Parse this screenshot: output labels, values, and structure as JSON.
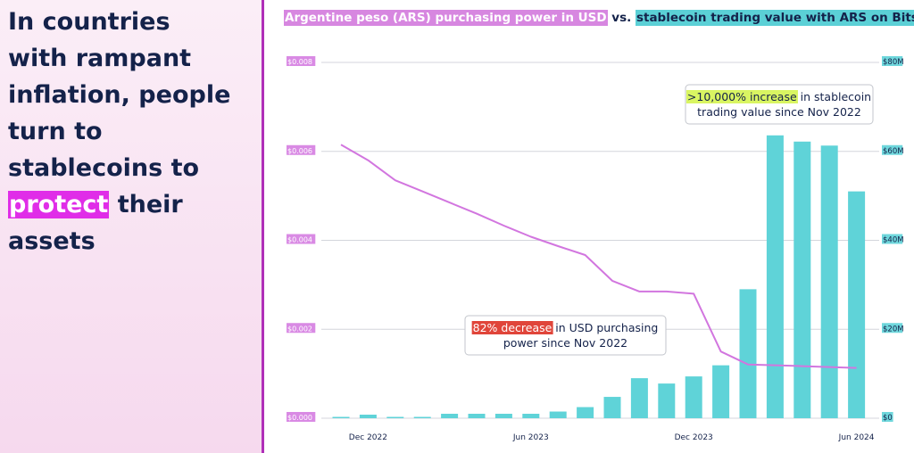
{
  "headline": {
    "line1": "In countries",
    "line2": "with rampant",
    "line3": "inflation, people",
    "line4": "turn to",
    "line5": "stablecoins to",
    "highlight": "protect",
    "line6_rest": " their",
    "line7": "assets"
  },
  "chart_title": {
    "part_ars": "Argentine peso (ARS) purchasing power in USD",
    "connector": " vs. ",
    "part_stable": "stablecoin trading value with ARS on Bitso"
  },
  "colors": {
    "ars_line": "#d276df",
    "bars": "#5fd3d8",
    "headline": "#14224a",
    "highlight": "#e02de8",
    "decrease_highlight": "#e0453a",
    "increase_highlight": "#d9f562"
  },
  "chart_data": {
    "type": "bar",
    "x": [
      "2022-11",
      "2022-12",
      "2023-01",
      "2023-02",
      "2023-03",
      "2023-04",
      "2023-05",
      "2023-06",
      "2023-07",
      "2023-08",
      "2023-09",
      "2023-10",
      "2023-11",
      "2023-12",
      "2024-01",
      "2024-02",
      "2024-03",
      "2024-04",
      "2024-05",
      "2024-06"
    ],
    "series": [
      {
        "kind": "bar",
        "axis": "right",
        "values": [
          0.3,
          0.8,
          0.3,
          0.3,
          1.0,
          1.0,
          1.0,
          1.0,
          1.5,
          2.5,
          4.8,
          9.0,
          7.8,
          9.4,
          11.9,
          29.0,
          63.6,
          62.2,
          61.3,
          51.0
        ]
      },
      {
        "kind": "line",
        "axis": "left",
        "values": [
          0.00615,
          0.0058,
          0.00535,
          0.0051,
          0.00485,
          0.0046,
          0.00433,
          0.00408,
          0.00387,
          0.00367,
          0.00309,
          0.00285,
          0.00285,
          0.0028,
          0.0015,
          0.00121,
          0.00119,
          0.00117,
          0.00115,
          0.00113
        ]
      }
    ],
    "y_left": {
      "min": 0,
      "max": 0.008,
      "ticks": [
        "$0.000",
        "$0.002",
        "$0.004",
        "$0.006",
        "$0.008"
      ]
    },
    "y_right": {
      "min": 0,
      "max": 80,
      "ticks": [
        "$0",
        "$20M",
        "$40M",
        "$60M",
        "$80M"
      ]
    },
    "x_ticks": [
      {
        "x": "2022-12",
        "label": "Dec 2022"
      },
      {
        "x": "2023-06",
        "label": "Jun 2023"
      },
      {
        "x": "2023-12",
        "label": "Dec 2023"
      },
      {
        "x": "2024-06",
        "label": "Jun 2024"
      }
    ],
    "grid": true,
    "annotations": {
      "increase": {
        "highlight": ">10,000% increase",
        "rest1": " in stablecoin",
        "line2": "trading value since Nov 2022"
      },
      "decrease": {
        "highlight": "82% decrease",
        "rest1": " in USD purchasing",
        "line2": "power since Nov 2022"
      }
    }
  }
}
